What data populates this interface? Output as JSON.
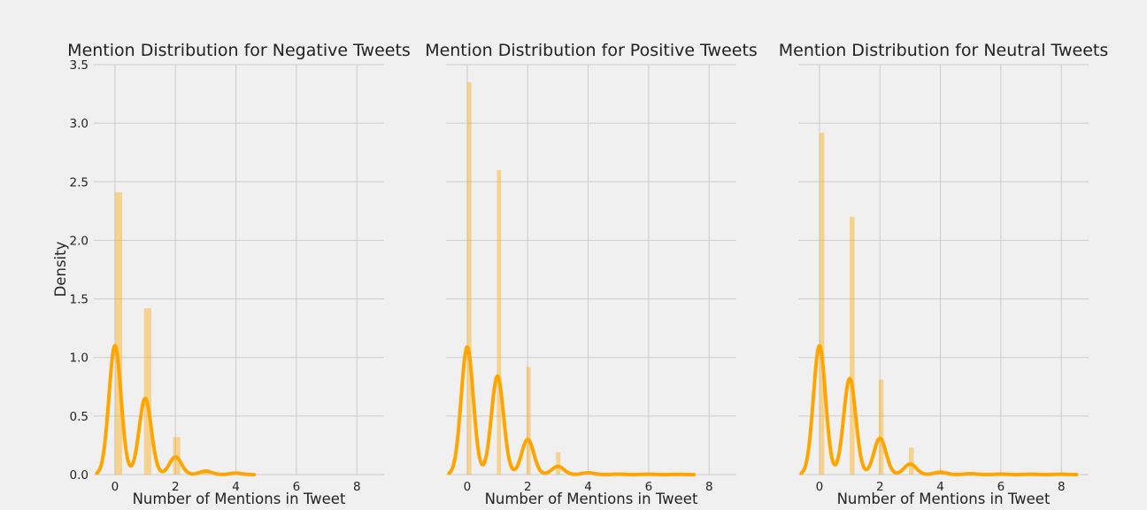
{
  "figure": {
    "background": "#f0f0f0"
  },
  "chart_data": [
    {
      "type": "histogram",
      "title": "Mention Distribution for Negative Tweets",
      "xlabel": "Number of Mentions in Tweet",
      "ylabel": "Density",
      "xlim": [
        -0.7,
        8.9
      ],
      "ylim": [
        0,
        3.5
      ],
      "xticks": [
        0,
        2,
        4,
        6,
        8
      ],
      "yticks": [
        0.0,
        0.5,
        1.0,
        1.5,
        2.0,
        2.5,
        3.0,
        3.5
      ],
      "grid": true,
      "bar_color": "#ffa500",
      "bar_opacity": 0.4,
      "kde_color": "#ffa500",
      "bars": [
        {
          "x_start": 0.0,
          "x_end": 0.24,
          "density": 2.41
        },
        {
          "x_start": 0.96,
          "x_end": 1.2,
          "density": 1.42
        },
        {
          "x_start": 1.92,
          "x_end": 2.16,
          "density": 0.32
        },
        {
          "x_start": 2.88,
          "x_end": 3.12,
          "density": 0.04
        },
        {
          "x_start": 3.84,
          "x_end": 4.08,
          "density": 0.01
        }
      ],
      "kde": {
        "x_range": [
          -0.6,
          4.6
        ],
        "peaks": [
          {
            "x": 0,
            "height": 1.1,
            "width": 0.2
          },
          {
            "x": 1,
            "height": 0.65,
            "width": 0.2
          },
          {
            "x": 2,
            "height": 0.15,
            "width": 0.2
          },
          {
            "x": 3,
            "height": 0.03,
            "width": 0.2
          },
          {
            "x": 4,
            "height": 0.012,
            "width": 0.2
          }
        ]
      }
    },
    {
      "type": "histogram",
      "title": "Mention Distribution for Positive Tweets",
      "xlabel": "Number of Mentions in Tweet",
      "ylabel": "",
      "xlim": [
        -0.7,
        8.9
      ],
      "ylim": [
        0,
        3.5
      ],
      "xticks": [
        0,
        2,
        4,
        6,
        8
      ],
      "yticks": [
        0.0,
        0.5,
        1.0,
        1.5,
        2.0,
        2.5,
        3.0,
        3.5
      ],
      "grid": true,
      "bar_color": "#ffa500",
      "bar_opacity": 0.4,
      "kde_color": "#ffa500",
      "bars": [
        {
          "x_start": 0.0,
          "x_end": 0.14,
          "density": 3.35
        },
        {
          "x_start": 0.98,
          "x_end": 1.12,
          "density": 2.6
        },
        {
          "x_start": 1.96,
          "x_end": 2.1,
          "density": 0.92
        },
        {
          "x_start": 2.94,
          "x_end": 3.08,
          "density": 0.19
        },
        {
          "x_start": 3.92,
          "x_end": 4.06,
          "density": 0.03
        },
        {
          "x_start": 4.9,
          "x_end": 5.04,
          "density": 0.008
        },
        {
          "x_start": 5.88,
          "x_end": 6.02,
          "density": 0.005
        }
      ],
      "kde": {
        "x_range": [
          -0.6,
          7.5
        ],
        "peaks": [
          {
            "x": 0,
            "height": 1.09,
            "width": 0.2
          },
          {
            "x": 1,
            "height": 0.84,
            "width": 0.2
          },
          {
            "x": 2,
            "height": 0.3,
            "width": 0.2
          },
          {
            "x": 3,
            "height": 0.07,
            "width": 0.2
          },
          {
            "x": 4,
            "height": 0.015,
            "width": 0.2
          },
          {
            "x": 5,
            "height": 0.004,
            "width": 0.2
          },
          {
            "x": 6,
            "height": 0.003,
            "width": 0.2
          },
          {
            "x": 7,
            "height": 0.002,
            "width": 0.2
          }
        ]
      }
    },
    {
      "type": "histogram",
      "title": "Mention Distribution for Neutral Tweets",
      "xlabel": "Number of Mentions in Tweet",
      "ylabel": "",
      "xlim": [
        -0.7,
        8.9
      ],
      "ylim": [
        0,
        3.5
      ],
      "xticks": [
        0,
        2,
        4,
        6,
        8
      ],
      "yticks": [
        0.0,
        0.5,
        1.0,
        1.5,
        2.0,
        2.5,
        3.0,
        3.5
      ],
      "grid": true,
      "bar_color": "#ffa500",
      "bar_opacity": 0.4,
      "kde_color": "#ffa500",
      "bars": [
        {
          "x_start": 0.0,
          "x_end": 0.16,
          "density": 2.92
        },
        {
          "x_start": 1.0,
          "x_end": 1.16,
          "density": 2.2
        },
        {
          "x_start": 1.96,
          "x_end": 2.12,
          "density": 0.81
        },
        {
          "x_start": 2.96,
          "x_end": 3.12,
          "density": 0.23
        },
        {
          "x_start": 3.92,
          "x_end": 4.08,
          "density": 0.04
        },
        {
          "x_start": 4.92,
          "x_end": 5.08,
          "density": 0.01
        },
        {
          "x_start": 5.92,
          "x_end": 6.08,
          "density": 0.005
        }
      ],
      "kde": {
        "x_range": [
          -0.6,
          8.5
        ],
        "peaks": [
          {
            "x": 0,
            "height": 1.1,
            "width": 0.2
          },
          {
            "x": 1,
            "height": 0.82,
            "width": 0.2
          },
          {
            "x": 2,
            "height": 0.31,
            "width": 0.2
          },
          {
            "x": 3,
            "height": 0.09,
            "width": 0.2
          },
          {
            "x": 4,
            "height": 0.02,
            "width": 0.2
          },
          {
            "x": 5,
            "height": 0.008,
            "width": 0.2
          },
          {
            "x": 6,
            "height": 0.004,
            "width": 0.2
          },
          {
            "x": 7,
            "height": 0.003,
            "width": 0.2
          },
          {
            "x": 8,
            "height": 0.003,
            "width": 0.2
          }
        ]
      }
    }
  ]
}
